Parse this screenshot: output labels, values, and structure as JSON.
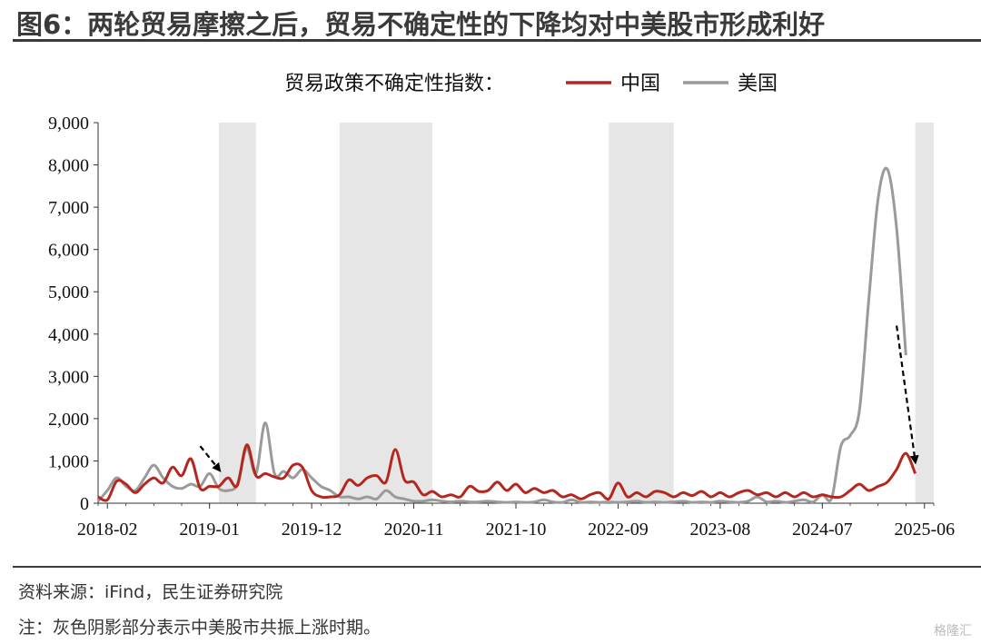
{
  "title": "图6：两轮贸易摩擦之后，贸易不确定性的下降均对中美股市形成利好",
  "footer": {
    "source": "资料来源：iFind，民生证券研究院",
    "note": "注：灰色阴影部分表示中美股市共振上涨时期。",
    "watermark": "格隆汇"
  },
  "chart_data": {
    "type": "line",
    "legend_title": "贸易政策不确定性指数：",
    "legend_position": "top-center",
    "x_tick_labels": [
      "2018-02",
      "2019-01",
      "2019-12",
      "2020-11",
      "2021-10",
      "2022-09",
      "2023-08",
      "2024-07",
      "2025-06"
    ],
    "y_ticks": [
      "0",
      "1,000",
      "2,000",
      "3,000",
      "4,000",
      "5,000",
      "6,000",
      "7,000",
      "8,000",
      "9,000"
    ],
    "ylim": [
      0,
      9000
    ],
    "grid": false,
    "shaded_periods": [
      [
        "2019-02",
        "2019-06"
      ],
      [
        "2020-03",
        "2021-01"
      ],
      [
        "2022-08",
        "2023-03"
      ],
      [
        "2025-05",
        "2025-07"
      ]
    ],
    "series": [
      {
        "name": "中国",
        "color": "#b5261e",
        "points": [
          [
            "2018-01",
            150
          ],
          [
            "2018-02",
            80
          ],
          [
            "2018-03",
            520
          ],
          [
            "2018-04",
            450
          ],
          [
            "2018-05",
            250
          ],
          [
            "2018-06",
            450
          ],
          [
            "2018-07",
            600
          ],
          [
            "2018-08",
            480
          ],
          [
            "2018-09",
            850
          ],
          [
            "2018-10",
            650
          ],
          [
            "2018-11",
            1050
          ],
          [
            "2018-12",
            350
          ],
          [
            "2019-01",
            400
          ],
          [
            "2019-02",
            400
          ],
          [
            "2019-03",
            600
          ],
          [
            "2019-04",
            420
          ],
          [
            "2019-05",
            1380
          ],
          [
            "2019-06",
            650
          ],
          [
            "2019-07",
            700
          ],
          [
            "2019-08",
            620
          ],
          [
            "2019-09",
            600
          ],
          [
            "2019-10",
            900
          ],
          [
            "2019-11",
            850
          ],
          [
            "2019-12",
            300
          ],
          [
            "2020-01",
            150
          ],
          [
            "2020-02",
            150
          ],
          [
            "2020-03",
            200
          ],
          [
            "2020-04",
            550
          ],
          [
            "2020-05",
            420
          ],
          [
            "2020-06",
            600
          ],
          [
            "2020-07",
            650
          ],
          [
            "2020-08",
            500
          ],
          [
            "2020-09",
            1270
          ],
          [
            "2020-10",
            550
          ],
          [
            "2020-11",
            500
          ],
          [
            "2020-12",
            200
          ],
          [
            "2021-01",
            280
          ],
          [
            "2021-02",
            150
          ],
          [
            "2021-03",
            200
          ],
          [
            "2021-04",
            150
          ],
          [
            "2021-05",
            400
          ],
          [
            "2021-06",
            280
          ],
          [
            "2021-07",
            300
          ],
          [
            "2021-08",
            500
          ],
          [
            "2021-09",
            300
          ],
          [
            "2021-10",
            450
          ],
          [
            "2021-11",
            250
          ],
          [
            "2021-12",
            350
          ],
          [
            "2022-01",
            250
          ],
          [
            "2022-02",
            300
          ],
          [
            "2022-03",
            150
          ],
          [
            "2022-04",
            200
          ],
          [
            "2022-05",
            100
          ],
          [
            "2022-06",
            200
          ],
          [
            "2022-07",
            250
          ],
          [
            "2022-08",
            100
          ],
          [
            "2022-09",
            480
          ],
          [
            "2022-10",
            150
          ],
          [
            "2022-11",
            250
          ],
          [
            "2022-12",
            150
          ],
          [
            "2023-01",
            280
          ],
          [
            "2023-02",
            250
          ],
          [
            "2023-03",
            150
          ],
          [
            "2023-04",
            250
          ],
          [
            "2023-05",
            180
          ],
          [
            "2023-06",
            280
          ],
          [
            "2023-07",
            150
          ],
          [
            "2023-08",
            250
          ],
          [
            "2023-09",
            150
          ],
          [
            "2023-10",
            250
          ],
          [
            "2023-11",
            300
          ],
          [
            "2023-12",
            200
          ],
          [
            "2024-01",
            250
          ],
          [
            "2024-02",
            150
          ],
          [
            "2024-03",
            250
          ],
          [
            "2024-04",
            150
          ],
          [
            "2024-05",
            250
          ],
          [
            "2024-06",
            150
          ],
          [
            "2024-07",
            200
          ],
          [
            "2024-08",
            150
          ],
          [
            "2024-09",
            150
          ],
          [
            "2024-10",
            300
          ],
          [
            "2024-11",
            450
          ],
          [
            "2024-12",
            300
          ],
          [
            "2025-01",
            400
          ],
          [
            "2025-02",
            500
          ],
          [
            "2025-03",
            800
          ],
          [
            "2025-04",
            1180
          ],
          [
            "2025-05",
            700
          ]
        ]
      },
      {
        "name": "美国",
        "color": "#9a9a9a",
        "points": [
          [
            "2018-01",
            50
          ],
          [
            "2018-02",
            300
          ],
          [
            "2018-03",
            600
          ],
          [
            "2018-04",
            400
          ],
          [
            "2018-05",
            300
          ],
          [
            "2018-06",
            600
          ],
          [
            "2018-07",
            900
          ],
          [
            "2018-08",
            600
          ],
          [
            "2018-09",
            400
          ],
          [
            "2018-10",
            350
          ],
          [
            "2018-11",
            450
          ],
          [
            "2018-12",
            400
          ],
          [
            "2019-01",
            700
          ],
          [
            "2019-02",
            350
          ],
          [
            "2019-03",
            300
          ],
          [
            "2019-04",
            450
          ],
          [
            "2019-05",
            1300
          ],
          [
            "2019-06",
            700
          ],
          [
            "2019-07",
            1900
          ],
          [
            "2019-08",
            700
          ],
          [
            "2019-09",
            750
          ],
          [
            "2019-10",
            600
          ],
          [
            "2019-11",
            800
          ],
          [
            "2019-12",
            600
          ],
          [
            "2020-01",
            400
          ],
          [
            "2020-02",
            300
          ],
          [
            "2020-03",
            150
          ],
          [
            "2020-04",
            150
          ],
          [
            "2020-05",
            100
          ],
          [
            "2020-06",
            150
          ],
          [
            "2020-07",
            100
          ],
          [
            "2020-08",
            300
          ],
          [
            "2020-09",
            150
          ],
          [
            "2020-10",
            100
          ],
          [
            "2020-11",
            50
          ],
          [
            "2020-12",
            50
          ],
          [
            "2021-01",
            80
          ],
          [
            "2021-02",
            50
          ],
          [
            "2021-03",
            30
          ],
          [
            "2021-04",
            50
          ],
          [
            "2021-05",
            30
          ],
          [
            "2021-06",
            30
          ],
          [
            "2021-07",
            50
          ],
          [
            "2021-08",
            30
          ],
          [
            "2021-09",
            20
          ],
          [
            "2021-10",
            30
          ],
          [
            "2021-11",
            20
          ],
          [
            "2021-12",
            30
          ],
          [
            "2022-01",
            80
          ],
          [
            "2022-02",
            30
          ],
          [
            "2022-03",
            20
          ],
          [
            "2022-04",
            80
          ],
          [
            "2022-05",
            20
          ],
          [
            "2022-06",
            30
          ],
          [
            "2022-07",
            20
          ],
          [
            "2022-08",
            30
          ],
          [
            "2022-09",
            20
          ],
          [
            "2022-10",
            30
          ],
          [
            "2022-11",
            50
          ],
          [
            "2022-12",
            20
          ],
          [
            "2023-01",
            30
          ],
          [
            "2023-02",
            20
          ],
          [
            "2023-03",
            30
          ],
          [
            "2023-04",
            50
          ],
          [
            "2023-05",
            20
          ],
          [
            "2023-06",
            30
          ],
          [
            "2023-07",
            20
          ],
          [
            "2023-08",
            50
          ],
          [
            "2023-09",
            30
          ],
          [
            "2023-10",
            20
          ],
          [
            "2023-11",
            50
          ],
          [
            "2023-12",
            150
          ],
          [
            "2024-01",
            30
          ],
          [
            "2024-02",
            50
          ],
          [
            "2024-03",
            20
          ],
          [
            "2024-04",
            50
          ],
          [
            "2024-05",
            80
          ],
          [
            "2024-06",
            30
          ],
          [
            "2024-07",
            200
          ],
          [
            "2024-08",
            120
          ],
          [
            "2024-09",
            1350
          ],
          [
            "2024-10",
            1600
          ],
          [
            "2024-11",
            2200
          ],
          [
            "2024-12",
            4800
          ],
          [
            "2025-01",
            7200
          ],
          [
            "2025-02",
            7900
          ],
          [
            "2025-03",
            6500
          ],
          [
            "2025-04",
            3500
          ]
        ]
      }
    ],
    "annotations": [
      {
        "type": "arrow",
        "style": "dashed",
        "from": [
          "2018-12",
          1350
        ],
        "to": [
          "2019-02",
          800
        ]
      },
      {
        "type": "arrow",
        "style": "dashed",
        "from": [
          "2025-03",
          4200
        ],
        "to": [
          "2025-05",
          1000
        ]
      }
    ]
  }
}
